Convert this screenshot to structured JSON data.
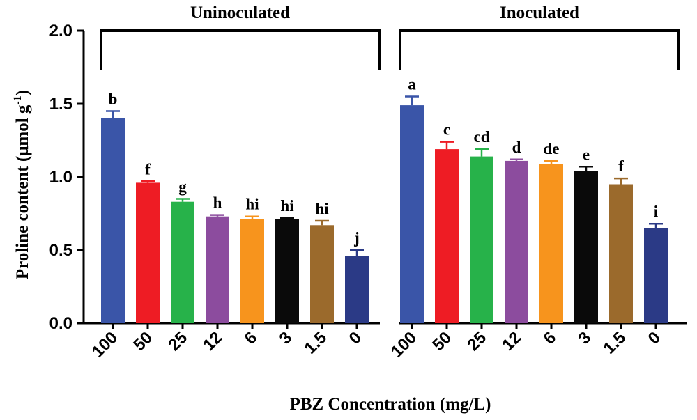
{
  "chart_data": {
    "type": "bar",
    "ylabel": "Proline content (μmol g",
    "ylabel_sup": "-1",
    "ylabel_close": ")",
    "xlabel": "PBZ Concentration (mg/L)",
    "ylim": [
      0,
      2.0
    ],
    "yticks": [
      "0.0",
      "0.5",
      "1.0",
      "1.5",
      "2.0"
    ],
    "groups": [
      {
        "name": "Uninoculated",
        "categories": [
          "100",
          "50",
          "25",
          "12",
          "6",
          "3",
          "1.5",
          "0"
        ],
        "values": [
          1.4,
          0.96,
          0.83,
          0.73,
          0.71,
          0.71,
          0.67,
          0.46
        ],
        "errors": [
          0.05,
          0.01,
          0.02,
          0.01,
          0.02,
          0.01,
          0.03,
          0.04
        ],
        "letters": [
          "b",
          "f",
          "g",
          "h",
          "hi",
          "hi",
          "hi",
          "j"
        ]
      },
      {
        "name": "Inoculated",
        "categories": [
          "100",
          "50",
          "25",
          "12",
          "6",
          "3",
          "1.5",
          "0"
        ],
        "values": [
          1.49,
          1.19,
          1.14,
          1.11,
          1.09,
          1.04,
          0.95,
          0.65
        ],
        "errors": [
          0.06,
          0.05,
          0.05,
          0.01,
          0.02,
          0.03,
          0.04,
          0.03
        ],
        "letters": [
          "a",
          "c",
          "cd",
          "d",
          "de",
          "e",
          "f",
          "i"
        ]
      }
    ],
    "colors": [
      "#3a55a8",
      "#ee1c24",
      "#27b24a",
      "#8c4c9e",
      "#f7941d",
      "#0a0a0a",
      "#9b6a2c",
      "#2b3a86"
    ],
    "grid": false,
    "legend": "none"
  }
}
